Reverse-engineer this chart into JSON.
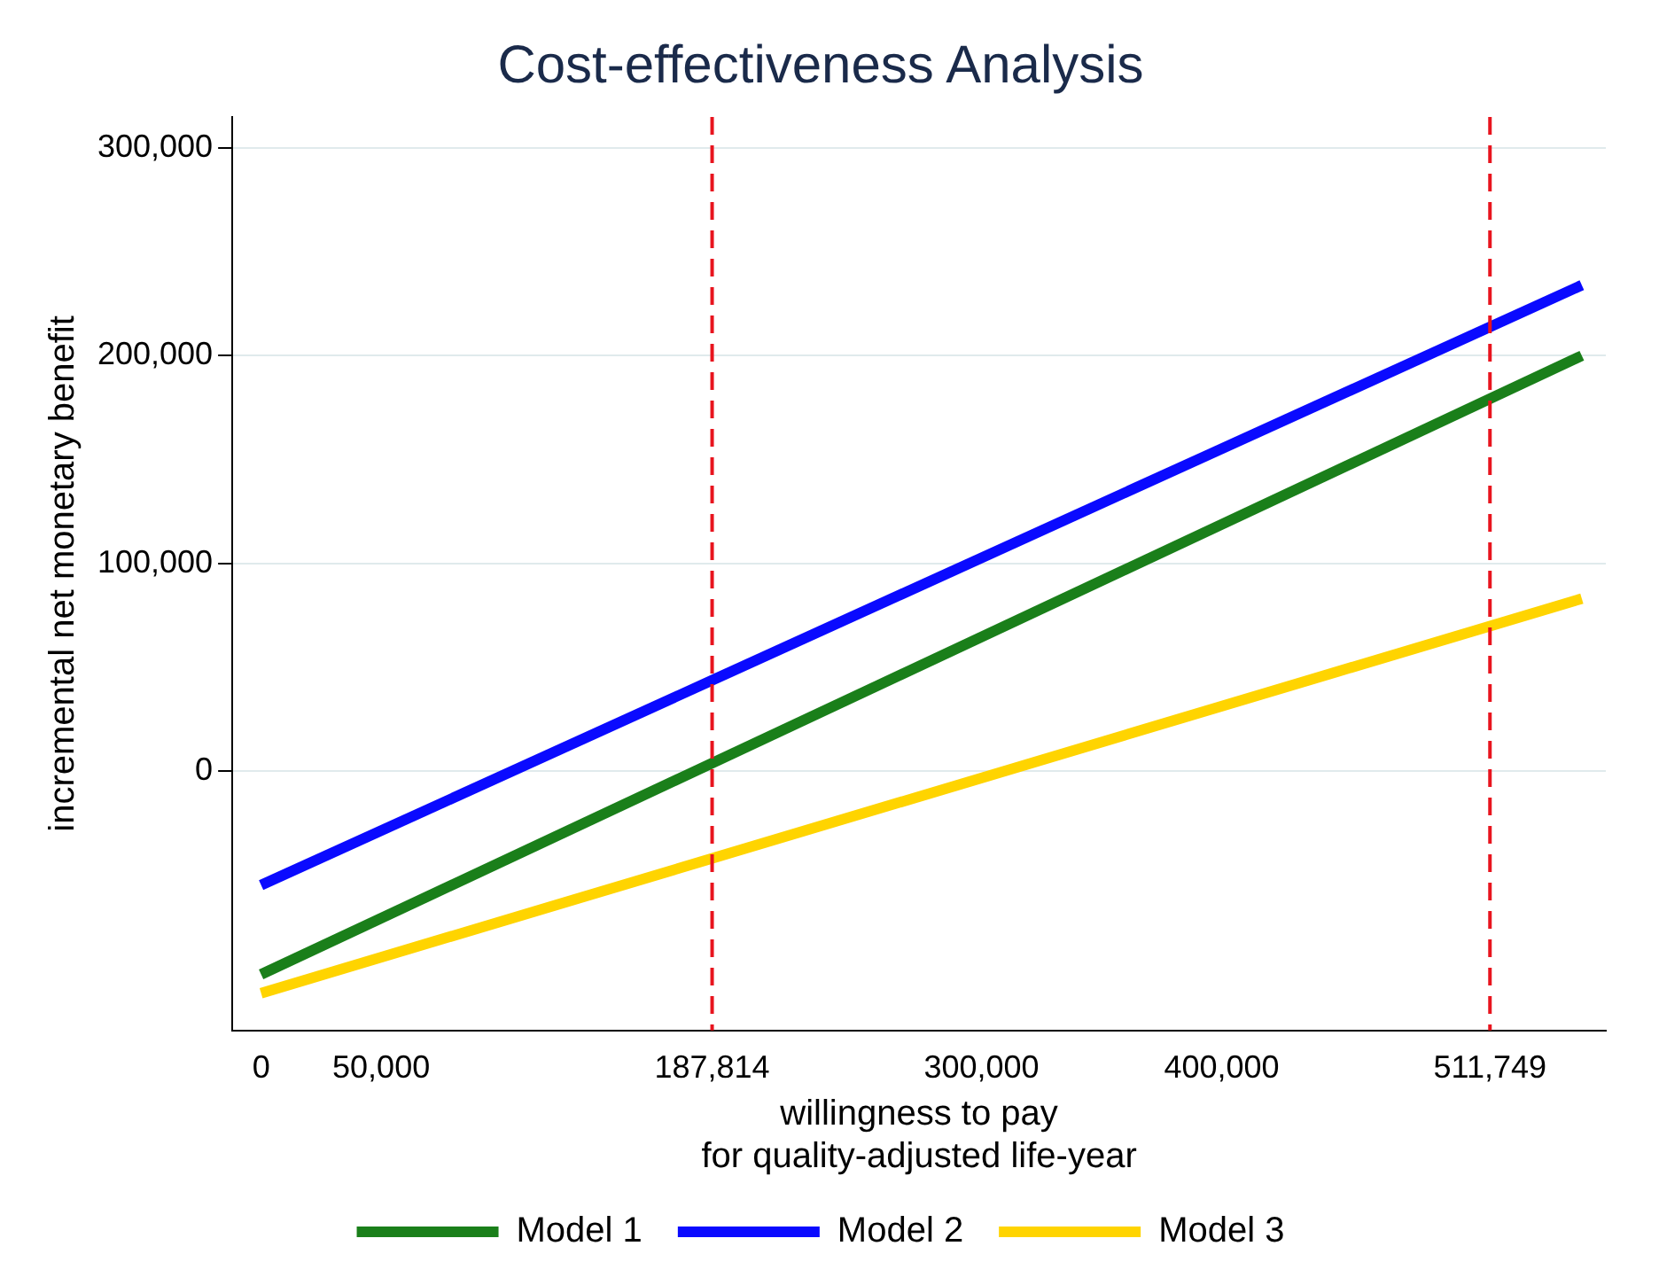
{
  "chart_data": {
    "type": "line",
    "title": "Cost-effectiveness Analysis",
    "xlabel": "willingness to pay\nfor quality-adjusted life-year",
    "ylabel": "incremental net monetary benefit",
    "x": [
      0,
      550000
    ],
    "series": [
      {
        "name": "Model 1",
        "color": "#1a7f1a",
        "values": [
          -98000,
          200000
        ]
      },
      {
        "name": "Model 2",
        "color": "#0a0aff",
        "values": [
          -55000,
          234000
        ]
      },
      {
        "name": "Model 3",
        "color": "#ffd400",
        "values": [
          -107000,
          83000
        ]
      }
    ],
    "xlim": [
      -12000,
      560000
    ],
    "xticks": [
      0,
      {
        "value": 50000,
        "label": "50,000"
      },
      {
        "value": 187814,
        "label": "187,814"
      },
      {
        "value": 300000,
        "label": "300,000"
      },
      {
        "value": 400000,
        "label": "400,000"
      },
      {
        "value": 511749,
        "label": "511,749"
      }
    ],
    "ylim": [
      -125000,
      315000
    ],
    "yticks": [
      0,
      {
        "value": 100000,
        "label": "100,000"
      },
      {
        "value": 200000,
        "label": "200,000"
      },
      {
        "value": 300000,
        "label": "300,000"
      }
    ],
    "ref_lines": [
      {
        "axis": "x",
        "value": 187814,
        "color": "#e8141e",
        "line_style": "dashed"
      },
      {
        "axis": "x",
        "value": 511749,
        "color": "#e8141e",
        "line_style": "dashed"
      }
    ],
    "grid": "y",
    "legend": "bottom",
    "marker": "none",
    "line_style": "solid"
  }
}
